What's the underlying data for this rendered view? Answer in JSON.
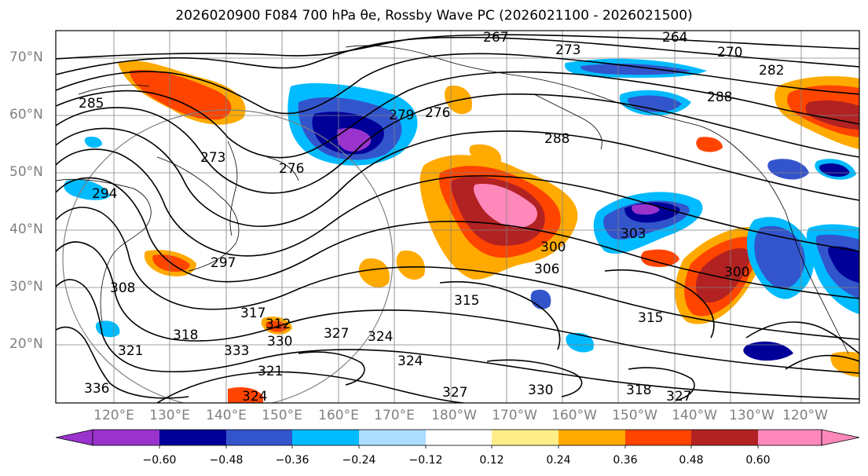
{
  "title": "2026020900 F084 700 hPa θe, Rossby Wave PC (2026021100 - 2026021500)",
  "lat_labels": [
    "70°N",
    "60°N",
    "50°N",
    "40°N",
    "30°N",
    "20°N"
  ],
  "lon_labels": [
    "120°E",
    "130°E",
    "140°E",
    "150°E",
    "160°E",
    "170°E",
    "180°W",
    "170°W",
    "160°W",
    "150°W",
    "140°W",
    "130°W",
    "120°W"
  ],
  "colorbar": {
    "ticks": [
      "−0.60",
      "−0.48",
      "−0.36",
      "−0.24",
      "−0.12",
      "0.12",
      "0.24",
      "0.36",
      "0.48",
      "0.60"
    ],
    "colors": [
      "#9933cc",
      "#000099",
      "#3355cc",
      "#00bbff",
      "#aaddff",
      "#ffffff",
      "#ffee88",
      "#ffaa00",
      "#ff4400",
      "#b22222",
      "#ff88bb"
    ],
    "under_color": "#9933cc",
    "over_color": "#ff88bb"
  },
  "contour_labels": [
    "267",
    "264",
    "273",
    "270",
    "282",
    "288",
    "285",
    "279",
    "276",
    "288",
    "276",
    "273",
    "294",
    "297",
    "308",
    "317",
    "300",
    "306",
    "303",
    "315",
    "312",
    "318",
    "321",
    "324",
    "327",
    "330",
    "333",
    "336",
    "300",
    "315",
    "324",
    "327",
    "330",
    "318",
    "327",
    "324",
    "321"
  ],
  "palette": {
    "pos1": "#ffaa00",
    "pos2": "#ff4400",
    "pos3": "#b22222",
    "pos4": "#ff88bb",
    "neg1": "#00bbff",
    "neg2": "#3355cc",
    "neg3": "#000099",
    "neg4": "#9933cc"
  }
}
